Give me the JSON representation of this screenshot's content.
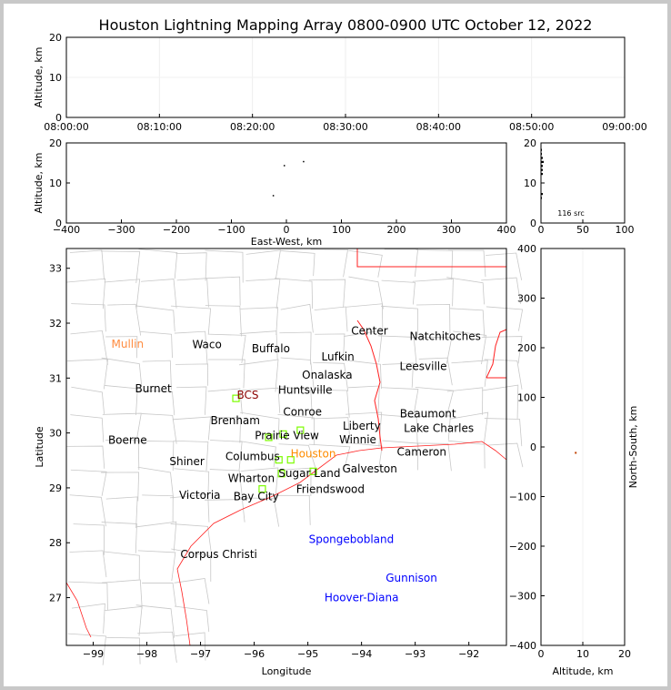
{
  "chart_data": [
    {
      "type": "scatter",
      "panel": "altitude-vs-time",
      "title": "Houston Lightning Mapping Array 0800-0900 UTC October 12, 2022",
      "ylabel": "Altitude, km",
      "ylim": [
        0,
        20
      ],
      "yticks": [
        0,
        10,
        20
      ],
      "xticks": [
        "08:00:00",
        "08:10:00",
        "08:20:00",
        "08:30:00",
        "08:40:00",
        "08:50:00",
        "09:00:00"
      ],
      "points": []
    },
    {
      "type": "scatter",
      "panel": "altitude-vs-east-west",
      "xlabel": "East-West, km",
      "ylabel": "Altitude, km",
      "xlim": [
        -400,
        400
      ],
      "ylim": [
        0,
        20
      ],
      "xticks": [
        -400,
        -300,
        -200,
        -100,
        0,
        100,
        200,
        300,
        400
      ],
      "yticks": [
        0,
        10,
        20
      ],
      "points": [
        [
          -5,
          14.5
        ],
        [
          30,
          15.5
        ],
        [
          -25,
          7
        ]
      ]
    },
    {
      "type": "bar",
      "panel": "altitude-histogram",
      "xlim": [
        0,
        100
      ],
      "ylim": [
        0,
        20
      ],
      "xticks": [
        0,
        50,
        100
      ],
      "yticks": [
        0,
        10,
        20
      ],
      "annotation": "116 src"
    },
    {
      "type": "map",
      "panel": "plan-view",
      "xlabel": "Longitude",
      "ylabel": "Latitude",
      "xlim": [
        -99.5,
        -91.3
      ],
      "ylim": [
        26.13,
        33.36
      ],
      "xticks": [
        -99,
        -98,
        -97,
        -96,
        -95,
        -94,
        -93,
        -92
      ],
      "yticks": [
        27,
        28,
        29,
        30,
        31,
        32,
        33
      ],
      "cities": [
        {
          "name": "Mullin",
          "lon": -98.36,
          "lat": 31.62,
          "color": "#ff8c40"
        },
        {
          "name": "Waco",
          "lon": -96.88,
          "lat": 31.61,
          "color": "#000000"
        },
        {
          "name": "Buffalo",
          "lon": -95.69,
          "lat": 31.54,
          "color": "#000000"
        },
        {
          "name": "Lufkin",
          "lon": -94.44,
          "lat": 31.39,
          "color": "#000000"
        },
        {
          "name": "Center",
          "lon": -93.85,
          "lat": 31.86,
          "color": "#000000"
        },
        {
          "name": "Natchitoches",
          "lon": -92.44,
          "lat": 31.76,
          "color": "#000000"
        },
        {
          "name": "Leesville",
          "lon": -92.85,
          "lat": 31.21,
          "color": "#000000"
        },
        {
          "name": "Burnet",
          "lon": -97.88,
          "lat": 30.81,
          "color": "#000000"
        },
        {
          "name": "BCS",
          "lon": -96.12,
          "lat": 30.69,
          "color": "#8b0000"
        },
        {
          "name": "Huntsville",
          "lon": -95.05,
          "lat": 30.78,
          "color": "#000000"
        },
        {
          "name": "Onalaska",
          "lon": -94.64,
          "lat": 30.86,
          "color": "#000000"
        },
        {
          "name": "Conroe",
          "lon": -95.1,
          "lat": 30.38,
          "color": "#000000"
        },
        {
          "name": "Brenham",
          "lon": -95.93,
          "lat": 30.23,
          "color": "#000000"
        },
        {
          "name": "Prairie View",
          "lon": -95.39,
          "lat": 30.15,
          "color": "#000000"
        },
        {
          "name": "Liberty",
          "lon": -94.42,
          "lat": 30.13,
          "color": "#000000"
        },
        {
          "name": "Beaumont",
          "lon": -93.61,
          "lat": 30.15,
          "color": "#000000"
        },
        {
          "name": "Lake Charles",
          "lon": -92.56,
          "lat": 30.28,
          "color": "#000000"
        },
        {
          "name": "Boerne",
          "lon": -98.36,
          "lat": 29.87,
          "color": "#000000"
        },
        {
          "name": "Columbus",
          "lon": -96.03,
          "lat": 29.77,
          "color": "#000000"
        },
        {
          "name": "Houston",
          "lon": -94.9,
          "lat": 29.82,
          "color": "#ff8c00"
        },
        {
          "name": "Winnie",
          "lon": -94.07,
          "lat": 29.88,
          "color": "#000000"
        },
        {
          "name": "Cameron",
          "lon": -92.88,
          "lat": 29.85,
          "color": "#000000"
        },
        {
          "name": "Sugar Land",
          "lon": -94.97,
          "lat": 29.66,
          "color": "#000000"
        },
        {
          "name": "Friendswood",
          "lon": -94.58,
          "lat": 29.57,
          "color": "#000000"
        },
        {
          "name": "Shiner",
          "lon": -96.83,
          "lat": 29.48,
          "color": "#000000"
        },
        {
          "name": "Wharton",
          "lon": -95.63,
          "lat": 29.37,
          "color": "#000000"
        },
        {
          "name": "Galveston",
          "lon": -94.27,
          "lat": 29.35,
          "color": "#000000"
        },
        {
          "name": "Bay City",
          "lon": -95.54,
          "lat": 29.04,
          "color": "#000000"
        },
        {
          "name": "Victoria",
          "lon": -96.59,
          "lat": 28.87,
          "color": "#000000"
        },
        {
          "name": "Spongebobland",
          "lon": -94.19,
          "lat": 28.06,
          "color": "#0000ff"
        },
        {
          "name": "Corpus Christi",
          "lon": -96.66,
          "lat": 27.79,
          "color": "#000000"
        },
        {
          "name": "Gunnison",
          "lon": -93.07,
          "lat": 27.36,
          "color": "#0000ff"
        },
        {
          "name": "Hoover-Diana",
          "lon": -94.0,
          "lat": 27.0,
          "color": "#0000ff"
        }
      ],
      "stations": [
        [
          -96.34,
          30.63
        ],
        [
          -95.73,
          29.92
        ],
        [
          -95.46,
          29.98
        ],
        [
          -95.14,
          30.05
        ],
        [
          -95.54,
          29.51
        ],
        [
          -95.32,
          29.51
        ],
        [
          -95.49,
          29.26
        ],
        [
          -94.9,
          29.3
        ],
        [
          -95.85,
          28.98
        ]
      ],
      "station_color": "#7cfc00"
    },
    {
      "type": "scatter",
      "panel": "north-south-vs-altitude",
      "xlabel": "Altitude, km",
      "ylabel": "North-South, km",
      "xlim": [
        0,
        20
      ],
      "ylim": [
        -400,
        400
      ],
      "xticks": [
        0,
        10,
        20
      ],
      "yticks": [
        -400,
        -300,
        -200,
        -100,
        0,
        100,
        200,
        300,
        400
      ],
      "points": [
        [
          7,
          -10
        ]
      ]
    }
  ]
}
